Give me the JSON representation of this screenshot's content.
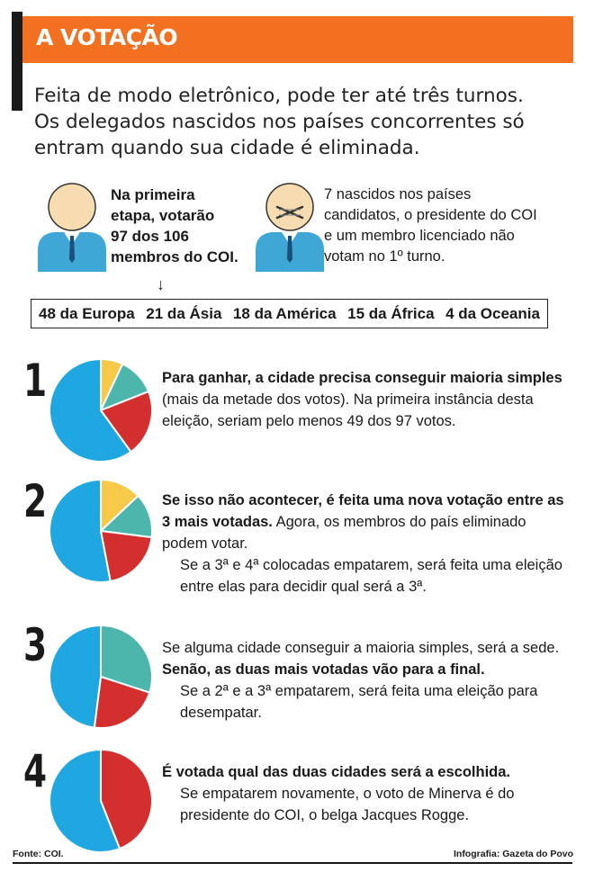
{
  "header": {
    "title": "A VOTAÇÃO"
  },
  "intro": {
    "line1": "Feita de modo eletrônico, pode ter até três turnos.",
    "line2": "Os delegados nascidos nos países concorrentes só",
    "line3": "entram quando sua cidade é eliminada."
  },
  "voters": {
    "line1": "Na primeira",
    "line2": "etapa, votarão",
    "line3": "97 dos 106",
    "line4": "membros do COI."
  },
  "non_voters": {
    "line1": "7 nascidos nos países",
    "line2": "candidatos, o presidente do COI",
    "line3": "e um membro licenciado não",
    "line4": "votam no 1º turno."
  },
  "arrow": "↓",
  "breakdown": [
    "48 da Europa",
    "21 da Ásia",
    "18 da América",
    "15 da África",
    "4 da Oceania"
  ],
  "steps": [
    {
      "number": "1",
      "bold": "Para ganhar, a cidade precisa conseguir maioria simples",
      "text": " (mais da metade dos votos). Na primeira instância desta eleição, seriam pelo menos 49 dos 97 votos."
    },
    {
      "number": "2",
      "bold": "Se isso não acontecer, é feita uma nova votação entre as 3 mais votadas.",
      "text": " Agora, os membros do país eliminado podem votar.",
      "extra": "Se a 3ª e 4ª colocadas empatarem, será feita uma eleição entre elas para decidir qual será a 3ª."
    },
    {
      "number": "3",
      "pre": "Se alguma cidade conseguir a maioria simples, será a sede. ",
      "bold": "Senão, as duas mais votadas vão para a final.",
      "extra": "Se a 2ª e a 3ª empatarem, será feita uma eleição para desempatar."
    },
    {
      "number": "4",
      "bold": "É votada qual das duas cidades será a escolhida.",
      "extra": "Se empatarem novamente, o voto de Minerva é do presidente do COI, o belga Jacques Rogge."
    }
  ],
  "pies": [
    {
      "slices": [
        {
          "value": 7,
          "color": "#f7c948"
        },
        {
          "value": 12,
          "color": "#4db6ac"
        },
        {
          "value": 21,
          "color": "#d32f2f"
        },
        {
          "value": 60,
          "color": "#1ea7e1"
        }
      ]
    },
    {
      "slices": [
        {
          "value": 13,
          "color": "#f7c948"
        },
        {
          "value": 14,
          "color": "#4db6ac"
        },
        {
          "value": 20,
          "color": "#d32f2f"
        },
        {
          "value": 53,
          "color": "#1ea7e1"
        }
      ]
    },
    {
      "slices": [
        {
          "value": 30,
          "color": "#4db6ac"
        },
        {
          "value": 22,
          "color": "#d32f2f"
        },
        {
          "value": 48,
          "color": "#1ea7e1"
        }
      ]
    },
    {
      "slices": [
        {
          "value": 44,
          "color": "#d32f2f"
        },
        {
          "value": 56,
          "color": "#1ea7e1"
        }
      ]
    }
  ],
  "footer": {
    "source": "Fonte: COI.",
    "credit": "Infografia: Gazeta do Povo"
  },
  "colors": {
    "accent": "#f37021",
    "person_skin": "#f6dcb0",
    "person_suit": "#3fa7d6"
  }
}
